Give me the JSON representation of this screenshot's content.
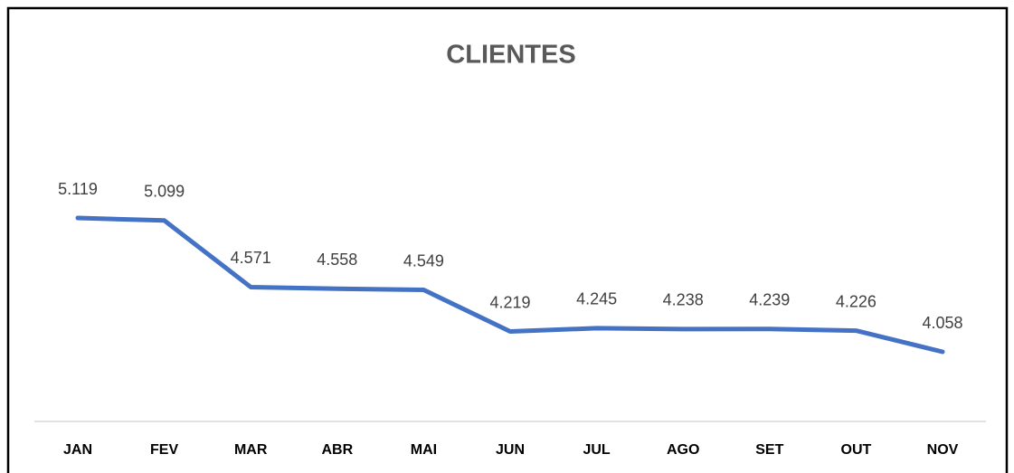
{
  "chart_data": {
    "type": "line",
    "title": "CLIENTES",
    "categories": [
      "JAN",
      "FEV",
      "MAR",
      "ABR",
      "MAI",
      "JUN",
      "JUL",
      "AGO",
      "SET",
      "OUT",
      "NOV"
    ],
    "values": [
      5.119,
      5.099,
      4.571,
      4.558,
      4.549,
      4.219,
      4.245,
      4.238,
      4.239,
      4.226,
      4.058
    ],
    "color": "#4472c4"
  }
}
